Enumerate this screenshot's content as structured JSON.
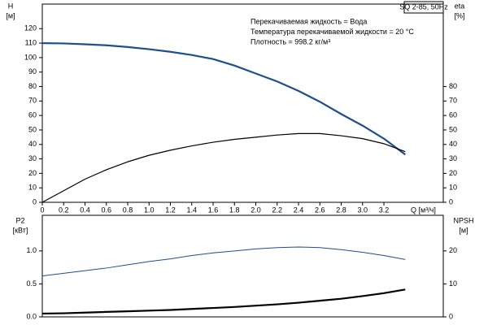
{
  "chart_data": [
    {
      "type": "line",
      "title": "SQ 2-85, 50Hz",
      "annotations": [
        "Перекачиваемая жидкость = Вода",
        "Температура перекачиваемой жидкости = 20 °C",
        "Плотность = 998.2 кг/м³"
      ],
      "ylabel": [
        "H",
        "[м]"
      ],
      "y2label": [
        "eta",
        "[%]"
      ],
      "xlabel": "Q [м³/ч]",
      "x": [
        0,
        0.2,
        0.4,
        0.6,
        0.8,
        1.0,
        1.2,
        1.4,
        1.6,
        1.8,
        2.0,
        2.2,
        2.4,
        2.6,
        2.8,
        3.0,
        3.2,
        3.4
      ],
      "series": [
        {
          "color": "#1f4e8c",
          "values": [
            110,
            109.8,
            109.2,
            108.5,
            107.3,
            105.8,
            104,
            101.8,
            99,
            94.5,
            89,
            83.5,
            77,
            69.5,
            61,
            53,
            44,
            33
          ]
        },
        {
          "color": "#000000",
          "axis": "y2",
          "values": [
            0,
            8,
            16,
            22.5,
            28,
            32.5,
            36,
            39,
            41.5,
            43.5,
            45,
            46.5,
            47.5,
            47.5,
            46,
            44,
            40.5,
            35
          ]
        }
      ],
      "xlim": [
        0,
        3.756
      ],
      "xticks": [
        0,
        0.2,
        0.4,
        0.6,
        0.8,
        {
          "value": 1,
          "label": "1.0"
        },
        1.2,
        1.4,
        1.6,
        1.8,
        {
          "value": 2,
          "label": "2.0"
        },
        2.2,
        2.4,
        2.6,
        2.8,
        {
          "value": 3,
          "label": "3.0"
        },
        3.2
      ],
      "ylim": [
        0,
        137
      ],
      "yticks": [
        0,
        10,
        20,
        30,
        40,
        50,
        60,
        70,
        80,
        90,
        100,
        110,
        120
      ],
      "y2lim": [
        0,
        137
      ],
      "y2ticks": [
        0,
        10,
        20,
        30,
        40,
        50,
        60,
        70,
        80
      ]
    },
    {
      "type": "line",
      "ylabel": [
        "P2",
        "[кВт]"
      ],
      "y2label": [
        "NPSH",
        "[м]"
      ],
      "x": [
        0,
        0.2,
        0.4,
        0.6,
        0.8,
        1.0,
        1.2,
        1.4,
        1.6,
        1.8,
        2.0,
        2.2,
        2.4,
        2.6,
        2.8,
        3.0,
        3.2,
        3.4
      ],
      "series": [
        {
          "color": "#1f4e8c",
          "values": [
            0.62,
            0.66,
            0.7,
            0.74,
            0.79,
            0.84,
            0.88,
            0.93,
            0.97,
            1.0,
            1.03,
            1.05,
            1.06,
            1.05,
            1.02,
            0.98,
            0.93,
            0.87
          ]
        },
        {
          "color": "#000000",
          "axis": "y2",
          "values": [
            1,
            1.1,
            1.3,
            1.5,
            1.7,
            1.9,
            2.1,
            2.4,
            2.7,
            3.0,
            3.4,
            3.8,
            4.3,
            4.9,
            5.5,
            6.3,
            7.2,
            8.3
          ]
        }
      ],
      "xlim": [
        0,
        3.756
      ],
      "ylim": [
        0,
        1.54
      ],
      "yticks": [
        {
          "value": 0,
          "label": "0.0"
        },
        0.5,
        {
          "value": 1,
          "label": "1.0"
        }
      ],
      "y2lim": [
        0,
        30.8
      ],
      "y2ticks": [
        0,
        10,
        20
      ]
    }
  ]
}
